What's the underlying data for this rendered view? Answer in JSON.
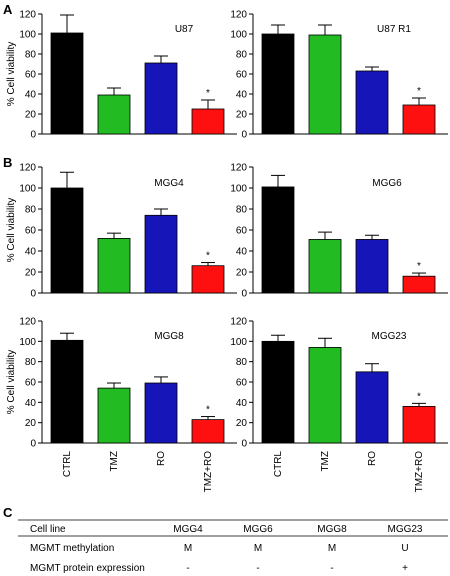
{
  "panel_letters": [
    "A",
    "B",
    "C"
  ],
  "colors": {
    "CTRL": "#000000",
    "TMZ": "#22bb22",
    "RO": "#1515b8",
    "TMZ+RO": "#ff1010"
  },
  "chart_data": [
    {
      "type": "bar",
      "title": "U87",
      "ylabel": "% Cell viability",
      "ylim": [
        0,
        120
      ],
      "yticks": [
        "0",
        "20",
        "40",
        "60",
        "80",
        "100",
        "120"
      ],
      "categories": [
        "CTRL",
        "TMZ",
        "RO",
        "TMZ+RO"
      ],
      "values": [
        101,
        39,
        71,
        25
      ],
      "errors": [
        18,
        7,
        7,
        9
      ],
      "annotations": [
        {
          "category": "TMZ+RO",
          "text": "*"
        }
      ]
    },
    {
      "type": "bar",
      "title": "U87 R1",
      "ylabel": "",
      "ylim": [
        0,
        120
      ],
      "yticks": [
        "0",
        "20",
        "40",
        "60",
        "80",
        "100",
        "120"
      ],
      "categories": [
        "CTRL",
        "TMZ",
        "RO",
        "TMZ+RO"
      ],
      "values": [
        100,
        99,
        63,
        29
      ],
      "errors": [
        9,
        10,
        4,
        7
      ],
      "annotations": [
        {
          "category": "TMZ+RO",
          "text": "*"
        }
      ]
    },
    {
      "type": "bar",
      "title": "MGG4",
      "ylabel": "% Cell viability",
      "ylim": [
        0,
        120
      ],
      "yticks": [
        "0",
        "20",
        "40",
        "60",
        "80",
        "100",
        "120"
      ],
      "categories": [
        "CTRL",
        "TMZ",
        "RO",
        "TMZ+RO"
      ],
      "values": [
        100,
        52,
        74,
        26
      ],
      "errors": [
        15,
        5,
        6,
        3
      ],
      "annotations": [
        {
          "category": "TMZ+RO",
          "text": "*"
        }
      ]
    },
    {
      "type": "bar",
      "title": "MGG6",
      "ylabel": "",
      "ylim": [
        0,
        120
      ],
      "yticks": [
        "0",
        "20",
        "40",
        "60",
        "80",
        "100",
        "120"
      ],
      "categories": [
        "CTRL",
        "TMZ",
        "RO",
        "TMZ+RO"
      ],
      "values": [
        101,
        51,
        51,
        16
      ],
      "errors": [
        11,
        7,
        4,
        3
      ],
      "annotations": [
        {
          "category": "TMZ+RO",
          "text": "*"
        }
      ]
    },
    {
      "type": "bar",
      "title": "MGG8",
      "ylabel": "% Cell viability",
      "ylim": [
        0,
        120
      ],
      "yticks": [
        "0",
        "20",
        "40",
        "60",
        "80",
        "100",
        "120"
      ],
      "categories": [
        "CTRL",
        "TMZ",
        "RO",
        "TMZ+RO"
      ],
      "values": [
        101,
        54,
        59,
        23
      ],
      "errors": [
        7,
        5,
        6,
        3
      ],
      "annotations": [
        {
          "category": "TMZ+RO",
          "text": "*"
        }
      ]
    },
    {
      "type": "bar",
      "title": "MGG23",
      "ylabel": "",
      "ylim": [
        0,
        120
      ],
      "yticks": [
        "0",
        "20",
        "40",
        "60",
        "80",
        "100",
        "120"
      ],
      "categories": [
        "CTRL",
        "TMZ",
        "RO",
        "TMZ+RO"
      ],
      "values": [
        100,
        94,
        70,
        36
      ],
      "errors": [
        6,
        9,
        8,
        3
      ],
      "annotations": [
        {
          "category": "TMZ+RO",
          "text": "*"
        }
      ]
    },
    {
      "type": "table",
      "columns": [
        "Cell line",
        "MGG4",
        "MGG6",
        "MGG8",
        "MGG23"
      ],
      "rows": [
        [
          "MGMT methylation",
          "M",
          "M",
          "M",
          "U"
        ],
        [
          "MGMT protein expression",
          "-",
          "-",
          "-",
          "+"
        ]
      ]
    }
  ]
}
